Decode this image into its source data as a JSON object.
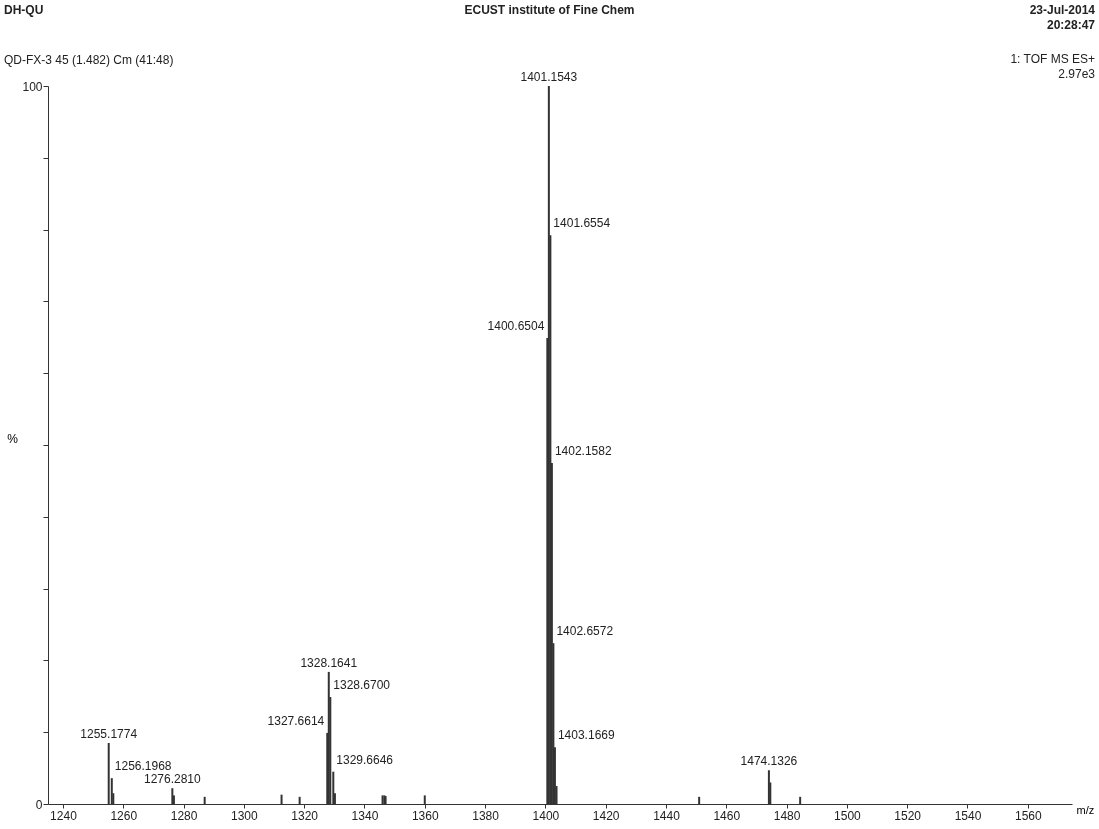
{
  "chart_data": {
    "type": "bar",
    "title": "ECUST institute of Fine Chem",
    "xlabel": "m/z",
    "ylabel": "%",
    "annotations": [
      "DH-QU",
      "23-Jul-2014",
      "20:28:47",
      "QD-FX-3 45 (1.482) Cm (41:48)",
      "1: TOF MS ES+",
      "2.97e3",
      {
        "text": "1255.1774",
        "x": 1255.1774,
        "y": 8.5
      },
      {
        "text": "1256.1968",
        "x": 1256.1968,
        "y": 3.6
      },
      {
        "text": "1276.2810",
        "x": 1276.281,
        "y": 2.2
      },
      {
        "text": "1327.6614",
        "x": 1327.6614,
        "y": 9.9
      },
      {
        "text": "1328.1641",
        "x": 1328.1641,
        "y": 18.4
      },
      {
        "text": "1328.6700",
        "x": 1328.67,
        "y": 14.9
      },
      {
        "text": "1329.6646",
        "x": 1329.6646,
        "y": 4.5
      },
      {
        "text": "1400.6504",
        "x": 1400.6504,
        "y": 64.9
      },
      {
        "text": "1401.1543",
        "x": 1401.1543,
        "y": 100
      },
      {
        "text": "1401.6554",
        "x": 1401.6554,
        "y": 79.2
      },
      {
        "text": "1402.1582",
        "x": 1402.1582,
        "y": 47.5
      },
      {
        "text": "1402.6572",
        "x": 1402.6572,
        "y": 22.4
      },
      {
        "text": "1403.1669",
        "x": 1403.1669,
        "y": 7.9
      },
      {
        "text": "1474.1326",
        "x": 1474.1326,
        "y": 4.7
      }
    ],
    "x": [
      1255.1774,
      1256.1968,
      1256.7,
      1276.281,
      1276.8,
      1287,
      1312.5,
      1318.5,
      1327.6614,
      1328.1641,
      1328.67,
      1329.6646,
      1330.2,
      1346,
      1346.6,
      1347,
      1360,
      1400.6504,
      1401.1543,
      1401.6554,
      1402.1582,
      1402.6572,
      1403.1669,
      1403.7,
      1451,
      1474.1326,
      1474.6,
      1484.5
    ],
    "values": [
      8.5,
      3.6,
      1.5,
      2.2,
      1.2,
      1.0,
      1.3,
      1.0,
      9.9,
      18.4,
      14.9,
      4.5,
      1.5,
      1.2,
      1.2,
      1.1,
      1.2,
      64.9,
      100,
      79.2,
      47.5,
      22.4,
      7.9,
      2.5,
      1.0,
      4.7,
      3.0,
      1.0
    ],
    "color": "#333333",
    "xlim": [
      1236.7,
      1573
    ],
    "xticks": [
      1240,
      1260,
      1280,
      1300,
      1320,
      1340,
      1360,
      1380,
      1400,
      1420,
      1440,
      1460,
      1480,
      1500,
      1520,
      1540,
      1560
    ],
    "ylim": [
      0,
      100
    ],
    "yticks": [
      0,
      {
        "value": 10,
        "label": null
      },
      {
        "value": 20,
        "label": null
      },
      {
        "value": 30,
        "label": null
      },
      {
        "value": 40,
        "label": null
      },
      {
        "value": 50,
        "label": null
      },
      {
        "value": 60,
        "label": null
      },
      {
        "value": 70,
        "label": null
      },
      {
        "value": 80,
        "label": null
      },
      {
        "value": 90,
        "label": null
      },
      100
    ],
    "grid": false
  }
}
